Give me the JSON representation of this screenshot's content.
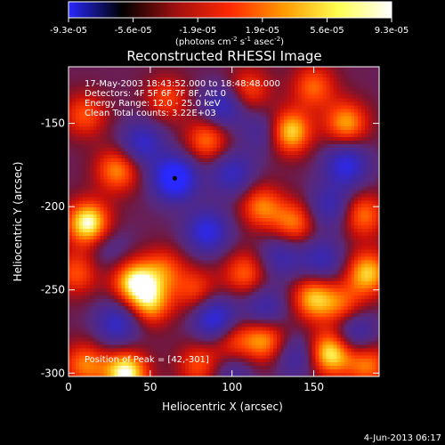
{
  "chart_data": {
    "type": "heatmap",
    "title": "Reconstructed RHESSI Image",
    "colorbar": {
      "ticks": [
        "-9.3e-05",
        "-5.6e-05",
        "-1.9e-05",
        "1.9e-05",
        "5.6e-05",
        "9.3e-05"
      ],
      "range": [
        -9.3e-05,
        9.3e-05
      ],
      "unit_base": "(photons cm",
      "unit_exp1": "-2",
      "unit_mid": " s",
      "unit_exp2": "-1",
      "unit_tail": " asec",
      "unit_exp3": "-2",
      "unit_close": ")",
      "colors": [
        "#2828ff",
        "#000000",
        "#a01010",
        "#ff2800",
        "#ff9a00",
        "#ffff50",
        "#ffffff"
      ]
    },
    "annotations": [
      "17-May-2003 18:43:52.000 to 18:48:48.000",
      "Detectors: 4F 5F 6F 7F 8F, Att 0",
      "Energy Range: 12.0 - 25.0 keV",
      "Clean    Total counts: 3.22E+03"
    ],
    "peak_label": "Position of Peak = [42,-301]",
    "peak": [
      42,
      -301
    ],
    "xlabel": "Heliocentric X (arcsec)",
    "ylabel": "Heliocentric Y (arcsec)",
    "xlim": [
      0,
      190
    ],
    "ylim": [
      -302,
      -116
    ],
    "xticks": [
      0,
      50,
      100,
      150
    ],
    "yticks": [
      -300,
      -250,
      -200,
      -150
    ],
    "blobs": [
      {
        "x": 12,
        "y": -210,
        "v": 1.0
      },
      {
        "x": 5,
        "y": -240,
        "v": 0.5
      },
      {
        "x": 40,
        "y": -245,
        "v": 0.85
      },
      {
        "x": 50,
        "y": -258,
        "v": 0.7
      },
      {
        "x": 35,
        "y": -300,
        "v": 1.0
      },
      {
        "x": 10,
        "y": -295,
        "v": 0.6
      },
      {
        "x": 30,
        "y": -178,
        "v": 0.65
      },
      {
        "x": 10,
        "y": -145,
        "v": 0.5
      },
      {
        "x": 60,
        "y": -135,
        "v": 0.45
      },
      {
        "x": 85,
        "y": -160,
        "v": 0.6
      },
      {
        "x": 110,
        "y": -130,
        "v": 0.5
      },
      {
        "x": 135,
        "y": -155,
        "v": 0.9
      },
      {
        "x": 150,
        "y": -128,
        "v": 0.55
      },
      {
        "x": 170,
        "y": -150,
        "v": 0.7
      },
      {
        "x": 118,
        "y": -200,
        "v": 0.6
      },
      {
        "x": 138,
        "y": -210,
        "v": 0.6
      },
      {
        "x": 180,
        "y": -205,
        "v": 0.6
      },
      {
        "x": 108,
        "y": -240,
        "v": 0.55
      },
      {
        "x": 150,
        "y": -255,
        "v": 0.75
      },
      {
        "x": 183,
        "y": -240,
        "v": 0.8
      },
      {
        "x": 168,
        "y": -260,
        "v": 0.5
      },
      {
        "x": 78,
        "y": -250,
        "v": 0.45
      },
      {
        "x": 58,
        "y": -238,
        "v": 0.5
      },
      {
        "x": 120,
        "y": -280,
        "v": 0.7
      },
      {
        "x": 160,
        "y": -288,
        "v": 0.95
      },
      {
        "x": 100,
        "y": -280,
        "v": 0.5
      },
      {
        "x": 80,
        "y": -295,
        "v": 0.5
      },
      {
        "x": 183,
        "y": -295,
        "v": 0.6
      },
      {
        "x": 65,
        "y": -183,
        "v": -1.0
      },
      {
        "x": 45,
        "y": -162,
        "v": -0.6
      },
      {
        "x": 95,
        "y": -140,
        "v": -0.6
      },
      {
        "x": 100,
        "y": -180,
        "v": -0.55
      },
      {
        "x": 120,
        "y": -155,
        "v": -0.4
      },
      {
        "x": 170,
        "y": -175,
        "v": -0.7
      },
      {
        "x": 160,
        "y": -200,
        "v": -0.5
      },
      {
        "x": 85,
        "y": -215,
        "v": -0.7
      },
      {
        "x": 130,
        "y": -230,
        "v": -0.45
      },
      {
        "x": 155,
        "y": -232,
        "v": -0.5
      },
      {
        "x": 30,
        "y": -270,
        "v": -0.6
      },
      {
        "x": 90,
        "y": -268,
        "v": -0.8
      },
      {
        "x": 120,
        "y": -262,
        "v": -0.5
      },
      {
        "x": 175,
        "y": -275,
        "v": -0.55
      },
      {
        "x": 140,
        "y": -290,
        "v": -0.45
      },
      {
        "x": 100,
        "y": -300,
        "v": -0.35
      },
      {
        "x": 25,
        "y": -225,
        "v": -0.25
      }
    ]
  },
  "footer": {
    "date": "4-Jun-2013 06:17"
  }
}
